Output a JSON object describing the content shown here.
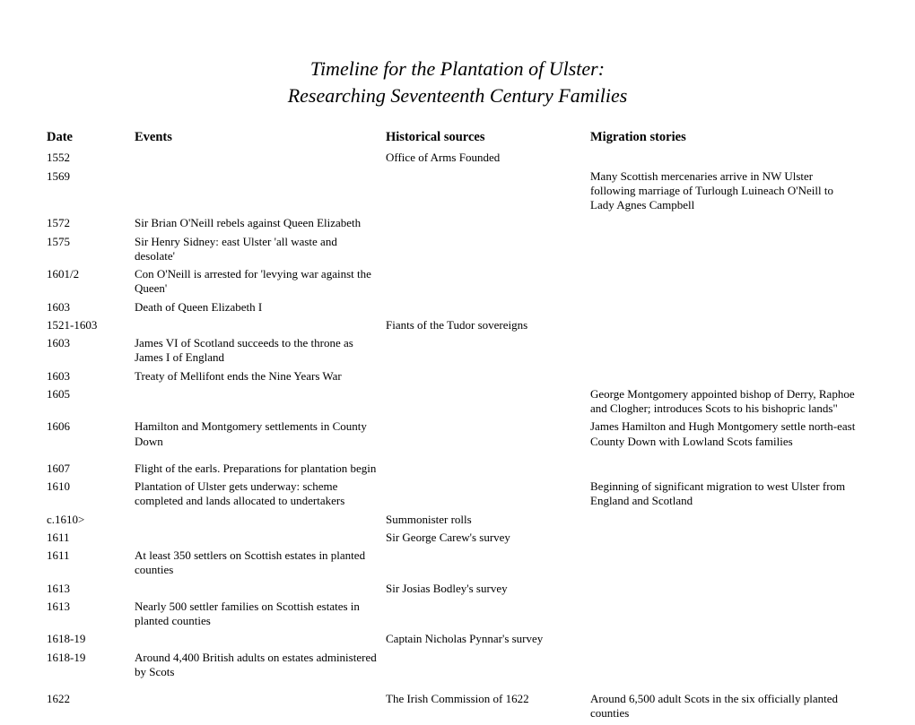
{
  "title": {
    "line1": "Timeline for the Plantation of Ulster:",
    "line2": "Researching Seventeenth Century Families"
  },
  "columns": {
    "date": "Date",
    "events": "Events",
    "sources": "Historical sources",
    "migration": "Migration stories"
  },
  "rows": [
    {
      "date": "1552",
      "event": "",
      "source": "Office of Arms Founded",
      "migration": ""
    },
    {
      "date": "1569",
      "event": "",
      "source": "",
      "migration": "Many Scottish mercenaries arrive in NW Ulster following marriage of Turlough Luineach O'Neill to Lady Agnes Campbell"
    },
    {
      "date": "1572",
      "event": "Sir Brian O'Neill rebels against Queen Elizabeth",
      "source": "",
      "migration": ""
    },
    {
      "date": "1575",
      "event": "Sir Henry Sidney: east Ulster 'all waste and desolate'",
      "source": "",
      "migration": ""
    },
    {
      "date": "1601/2",
      "event": "Con O'Neill is arrested for 'levying war against the Queen'",
      "source": "",
      "migration": ""
    },
    {
      "date": "1603",
      "event": "Death of Queen Elizabeth I",
      "source": "",
      "migration": ""
    },
    {
      "date": "1521-1603",
      "event": "",
      "source": "Fiants of the Tudor sovereigns",
      "migration": ""
    },
    {
      "date": "1603",
      "event": "James VI of Scotland succeeds to the throne as James I of England",
      "source": "",
      "migration": ""
    },
    {
      "date": "1603",
      "event": "Treaty of Mellifont ends the Nine Years War",
      "source": "",
      "migration": ""
    },
    {
      "date": "1605",
      "event": "",
      "source": "",
      "migration": "George Montgomery appointed bishop of Derry, Raphoe and Clogher; introduces Scots to his bishopric lands\""
    },
    {
      "date": "1606",
      "event": "Hamilton and Montgomery settlements in County Down",
      "source": "",
      "migration": "James Hamilton and Hugh Montgomery settle north-east County Down with Lowland Scots families"
    },
    {
      "date": "1607",
      "event": "Flight of the earls. Preparations for plantation begin",
      "source": "",
      "migration": "",
      "padtop": true
    },
    {
      "date": "1610",
      "event": "Plantation of Ulster gets underway: scheme completed and lands allocated to undertakers",
      "source": "",
      "migration": "Beginning of significant migration to west Ulster from England and Scotland"
    },
    {
      "date": "c.1610>",
      "event": "",
      "source": "Summonister rolls",
      "migration": ""
    },
    {
      "date": "1611",
      "event": "",
      "source": "Sir George Carew's survey",
      "migration": ""
    },
    {
      "date": "1611",
      "event": "At least 350 settlers on Scottish estates in planted counties",
      "source": "",
      "migration": ""
    },
    {
      "date": "1613",
      "event": "",
      "source": "Sir Josias Bodley's survey",
      "migration": ""
    },
    {
      "date": "1613",
      "event": "Nearly 500 settler families on Scottish estates in planted counties",
      "source": "",
      "migration": ""
    },
    {
      "date": "1618-19",
      "event": "",
      "source": "Captain Nicholas Pynnar's survey",
      "migration": ""
    },
    {
      "date": "1618-19",
      "event": "Around 4,400 British adults on estates administered by Scots",
      "source": "",
      "migration": ""
    },
    {
      "date": "1622",
      "event": "",
      "source": "The Irish Commission of 1622",
      "migration": "Around 6,500 adult Scots in the six officially planted counties",
      "padtop": true
    }
  ],
  "style": {
    "background": "#ffffff",
    "text_color": "#000000",
    "title_fontsize": 22,
    "header_fontsize": 14.5,
    "body_fontsize": 13,
    "font_family": "Georgia, Times New Roman, serif"
  }
}
